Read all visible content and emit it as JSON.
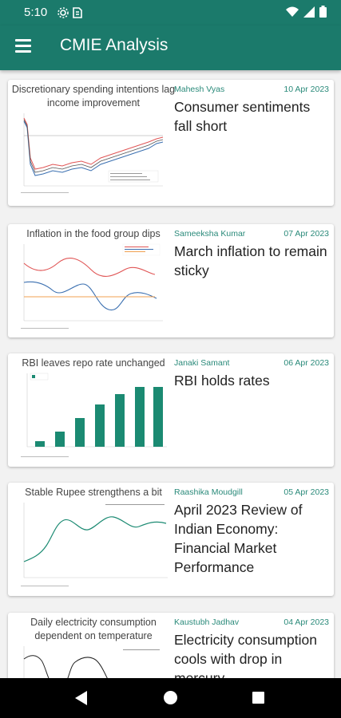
{
  "status_bar": {
    "time": "5:10",
    "icons": [
      "gear-icon",
      "sim-card-icon",
      "wifi-icon",
      "signal-icon",
      "battery-icon"
    ]
  },
  "app_bar": {
    "title": "CMIE Analysis",
    "menu_icon": "hamburger-menu-icon"
  },
  "articles": [
    {
      "thumb_title": "Discretionary spending intentions lag income improvement",
      "author": "Mahesh Vyas",
      "date": "10 Apr 2023",
      "headline": "Consumer sentiments fall short"
    },
    {
      "thumb_title": "Inflation in the food group dips",
      "author": "Sameeksha Kumar",
      "date": "07 Apr 2023",
      "headline": "March inflation to remain sticky"
    },
    {
      "thumb_title": "RBI leaves repo rate unchanged",
      "author": "Janaki Samant",
      "date": "06 Apr 2023",
      "headline": "RBI holds rates"
    },
    {
      "thumb_title": "Stable Rupee strengthens a bit",
      "author": "Raashika Moudgill",
      "date": "05 Apr 2023",
      "headline": "April 2023 Review of Indian Economy: Financial Market Performance"
    },
    {
      "thumb_title": "Daily electricity consumption dependent on temperature",
      "author": "Kaustubh Jadhav",
      "date": "04 Apr 2023",
      "headline": "Electricity consumption cools with drop in mercury"
    }
  ],
  "nav_bar": {
    "icons": [
      "back-icon",
      "home-icon",
      "recents-icon"
    ]
  },
  "colors": {
    "primary": "#1b7a6b",
    "accent_text": "#2a8a7a",
    "bar_fill": "#1b8a72"
  }
}
